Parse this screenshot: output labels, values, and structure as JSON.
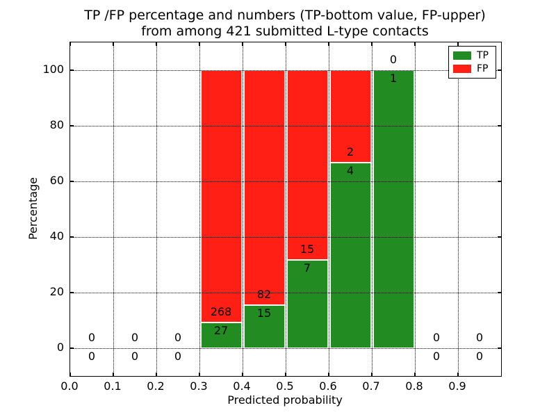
{
  "figure": {
    "title_line1": "TP /FP percentage and numbers (TP-bottom value, FP-upper)",
    "title_line2": "from among 421 submitted L-type contacts"
  },
  "axes": {
    "xlabel": "Predicted probability",
    "ylabel": "Percentage",
    "x_tick_labels": [
      "0.0",
      "0.1",
      "0.2",
      "0.3",
      "0.4",
      "0.5",
      "0.6",
      "0.7",
      "0.8",
      "0.9"
    ],
    "y_tick_labels": [
      "0",
      "20",
      "40",
      "60",
      "80",
      "100"
    ],
    "x_range": [
      0.0,
      1.0
    ],
    "y_range": [
      -10,
      110
    ],
    "grid_style": "dotted"
  },
  "legend": {
    "position": "upper right",
    "entries": [
      {
        "label": "TP",
        "color": "#228b22"
      },
      {
        "label": "FP",
        "color": "#ff1f15"
      }
    ]
  },
  "chart_data": {
    "type": "bar",
    "stacked": true,
    "bin_width": 0.1,
    "colors": {
      "tp": "#228b22",
      "fp": "#ff1f15"
    },
    "bins": [
      {
        "range": [
          0.0,
          0.1
        ],
        "tp_count": "0",
        "fp_count": "0",
        "tp_pct": 0,
        "fp_pct": 0
      },
      {
        "range": [
          0.1,
          0.2
        ],
        "tp_count": "0",
        "fp_count": "0",
        "tp_pct": 0,
        "fp_pct": 0
      },
      {
        "range": [
          0.2,
          0.3
        ],
        "tp_count": "0",
        "fp_count": "0",
        "tp_pct": 0,
        "fp_pct": 0
      },
      {
        "range": [
          0.3,
          0.4
        ],
        "tp_count": "27",
        "fp_count": "268",
        "tp_pct": 9.15,
        "fp_pct": 90.85
      },
      {
        "range": [
          0.4,
          0.5
        ],
        "tp_count": "15",
        "fp_count": "82",
        "tp_pct": 15.46,
        "fp_pct": 84.54
      },
      {
        "range": [
          0.5,
          0.6
        ],
        "tp_count": "7",
        "fp_count": "15",
        "tp_pct": 31.82,
        "fp_pct": 68.18
      },
      {
        "range": [
          0.6,
          0.7
        ],
        "tp_count": "4",
        "fp_count": "2",
        "tp_pct": 66.67,
        "fp_pct": 33.33
      },
      {
        "range": [
          0.7,
          0.8
        ],
        "tp_count": "1",
        "fp_count": "0",
        "tp_pct": 100,
        "fp_pct": 0
      },
      {
        "range": [
          0.8,
          0.9
        ],
        "tp_count": "0",
        "fp_count": "0",
        "tp_pct": 0,
        "fp_pct": 0
      },
      {
        "range": [
          0.9,
          1.0
        ],
        "tp_count": "0",
        "fp_count": "0",
        "tp_pct": 0,
        "fp_pct": 0
      }
    ]
  }
}
